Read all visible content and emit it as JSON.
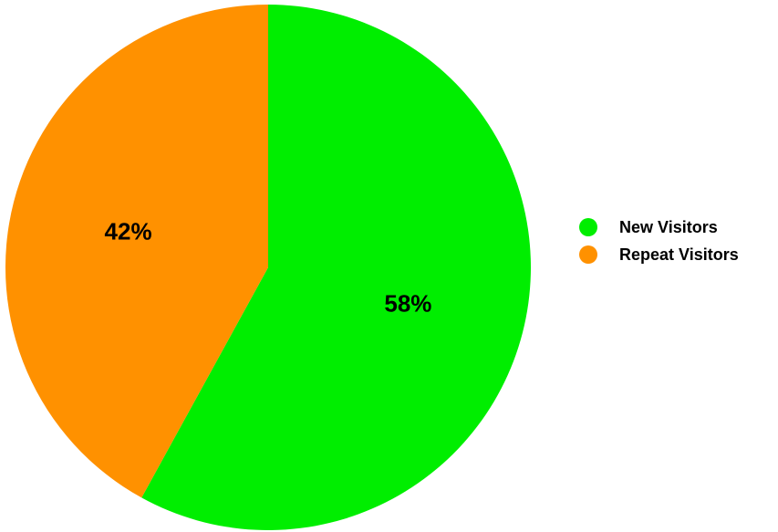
{
  "chart_data": {
    "type": "pie",
    "categories": [
      "New Visitors",
      "Repeat Visitors"
    ],
    "values": [
      58,
      42
    ],
    "colors": [
      "#00ee00",
      "#ff9100"
    ],
    "data_labels": [
      "58%",
      "42%"
    ],
    "start_angle_deg": 0,
    "direction": "clockwise",
    "legend_position": "right",
    "title": "",
    "xlabel": "",
    "ylabel": ""
  },
  "legend": {
    "items": [
      {
        "label": "New Visitors",
        "color": "#00ee00"
      },
      {
        "label": "Repeat Visitors",
        "color": "#ff9100"
      }
    ]
  }
}
